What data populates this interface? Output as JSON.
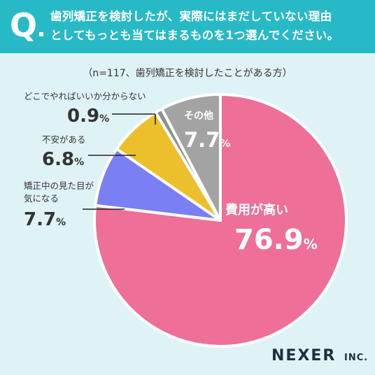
{
  "header": {
    "q_mark": "Q",
    "question_line1": "歯列矯正を検討したが、実際にはまだしていない理由",
    "question_line2": "としてもっとも当てはまるものを1つ選んでください。"
  },
  "sample_note": "（n=117、歯列矯正を検討したことがある方）",
  "logo": {
    "name": "NEXER",
    "suffix": "INC."
  },
  "colors": {
    "header_bg": "#27b9c6",
    "background": "#dff3f6",
    "slice_high_cost": "#ee6f97",
    "slice_appearance": "#7a7ff2",
    "slice_anxiety": "#ecc02c",
    "slice_unknown": "#8f8f8f",
    "slice_other": "#a3a3a3"
  },
  "chart_data": {
    "type": "pie",
    "start": "12 o'clock, clockwise",
    "slices": [
      {
        "label": "費用が高い",
        "value": 76.9,
        "value_text": "76.9",
        "unit": "%",
        "color": "#ee6f97",
        "label_position": "inside"
      },
      {
        "label": "矯正中の見た目が気になる",
        "label_lines": [
          "矯正中の見た目が",
          "気になる"
        ],
        "value": 7.7,
        "value_text": "7.7",
        "unit": "%",
        "color": "#7a7ff2",
        "label_position": "outside-left"
      },
      {
        "label": "不安がある",
        "label_lines": [
          "不安がある"
        ],
        "value": 6.8,
        "value_text": "6.8",
        "unit": "%",
        "color": "#ecc02c",
        "label_position": "outside-left"
      },
      {
        "label": "どこでやればいいか分からない",
        "label_lines": [
          "どこでやればいいか分からない"
        ],
        "value": 0.9,
        "value_text": "0.9",
        "unit": "%",
        "color": "#8f8f8f",
        "label_position": "outside-left"
      },
      {
        "label": "その他",
        "value": 7.7,
        "value_text": "7.7",
        "unit": "%",
        "color": "#a3a3a3",
        "label_position": "inside"
      }
    ]
  }
}
